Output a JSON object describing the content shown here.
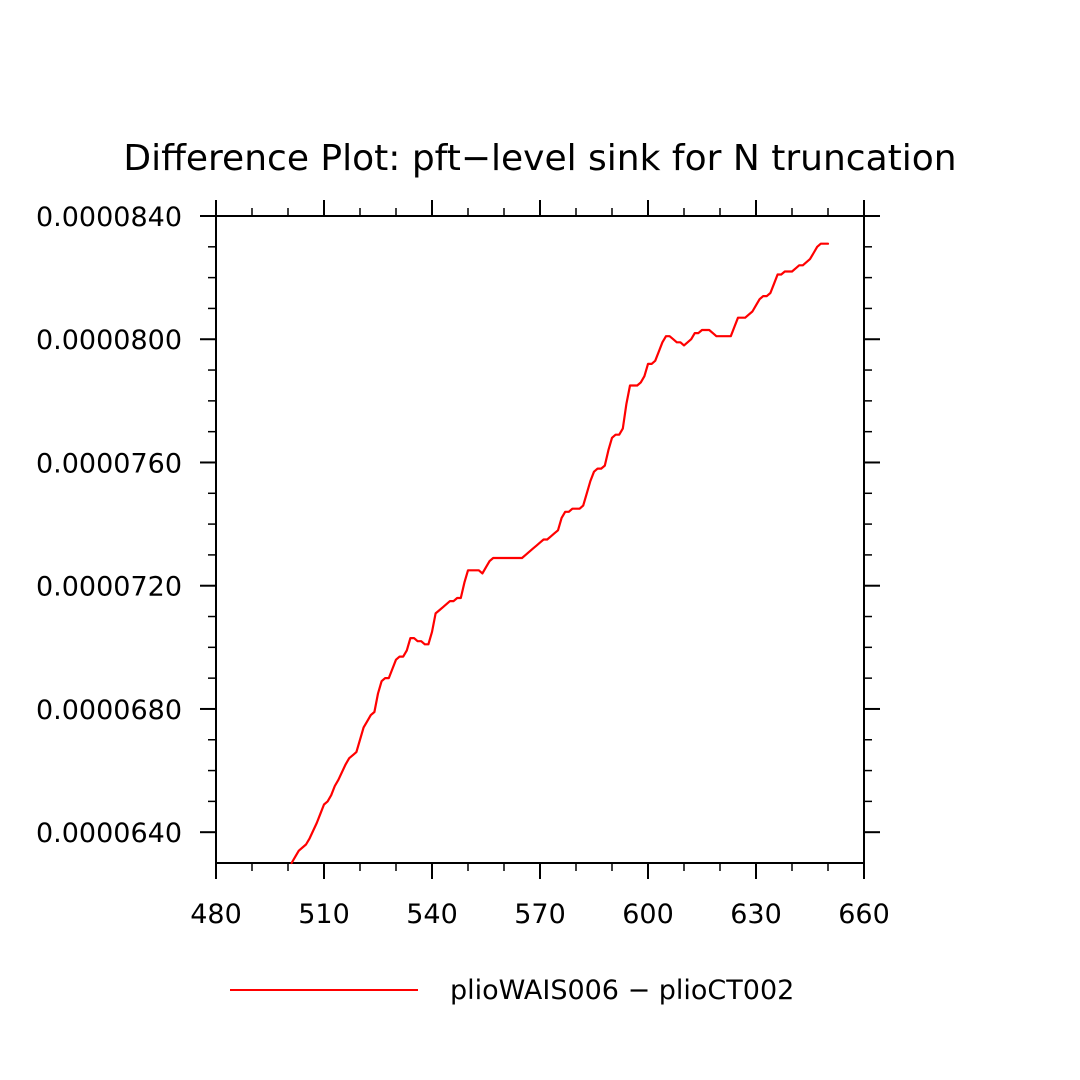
{
  "chart_data": {
    "type": "line",
    "title": "Difference Plot: pft−level sink for N truncation",
    "xlabel": "",
    "ylabel": "",
    "xlim": [
      480,
      660
    ],
    "ylim": [
      6.3e-05,
      8.4e-05
    ],
    "x_ticks": [
      480,
      510,
      540,
      570,
      600,
      630,
      660
    ],
    "x_tick_labels": [
      "480",
      "510",
      "540",
      "570",
      "600",
      "630",
      "660"
    ],
    "y_ticks": [
      6.4e-05,
      6.8e-05,
      7.2e-05,
      7.6e-05,
      8e-05,
      8.4e-05
    ],
    "y_tick_labels": [
      "0.0000640",
      "0.0000680",
      "0.0000720",
      "0.0000760",
      "0.0000800",
      "0.0000840"
    ],
    "grid": false,
    "legend_position": "bottom",
    "series": [
      {
        "name": "plioWAIS006 − plioCT002",
        "color": "#ff0000",
        "x": [
          501,
          502,
          503,
          505,
          506,
          508,
          509,
          510,
          511,
          512,
          513,
          514,
          516,
          517,
          518,
          519,
          521,
          522,
          523,
          524,
          525,
          526,
          527,
          528,
          529,
          530,
          531,
          532,
          533,
          534,
          535,
          536,
          537,
          538,
          539,
          540,
          541,
          542,
          543,
          544,
          545,
          546,
          547,
          548,
          549,
          550,
          551,
          552,
          553,
          554,
          555,
          556,
          557,
          558,
          559,
          560,
          561,
          562,
          563,
          564,
          565,
          566,
          567,
          568,
          569,
          570,
          571,
          572,
          573,
          574,
          575,
          576,
          577,
          578,
          579,
          580,
          581,
          582,
          583,
          584,
          585,
          586,
          587,
          588,
          589,
          590,
          591,
          592,
          593,
          594,
          595,
          596,
          597,
          598,
          599,
          600,
          601,
          602,
          603,
          604,
          605,
          606,
          607,
          608,
          609,
          610,
          611,
          612,
          613,
          614,
          615,
          616,
          617,
          618,
          619,
          620,
          621,
          622,
          623,
          624,
          625,
          626,
          627,
          628,
          629,
          630,
          631,
          632,
          633,
          634,
          635,
          636,
          637,
          638,
          639,
          640,
          641,
          642,
          643,
          644,
          645,
          646,
          647,
          648,
          649,
          650
        ],
        "y": [
          6.3e-05,
          6.32e-05,
          6.34e-05,
          6.36e-05,
          6.38e-05,
          6.43e-05,
          6.46e-05,
          6.49e-05,
          6.5e-05,
          6.52e-05,
          6.55e-05,
          6.57e-05,
          6.62e-05,
          6.64e-05,
          6.65e-05,
          6.66e-05,
          6.74e-05,
          6.76e-05,
          6.78e-05,
          6.79e-05,
          6.85e-05,
          6.89e-05,
          6.9e-05,
          6.9e-05,
          6.93e-05,
          6.96e-05,
          6.97e-05,
          6.97e-05,
          6.99e-05,
          7.03e-05,
          7.03e-05,
          7.02e-05,
          7.02e-05,
          7.01e-05,
          7.01e-05,
          7.05e-05,
          7.11e-05,
          7.12e-05,
          7.13e-05,
          7.14e-05,
          7.15e-05,
          7.15e-05,
          7.16e-05,
          7.16e-05,
          7.21e-05,
          7.25e-05,
          7.25e-05,
          7.25e-05,
          7.25e-05,
          7.24e-05,
          7.26e-05,
          7.28e-05,
          7.29e-05,
          7.29e-05,
          7.29e-05,
          7.29e-05,
          7.29e-05,
          7.29e-05,
          7.29e-05,
          7.29e-05,
          7.29e-05,
          7.3e-05,
          7.31e-05,
          7.32e-05,
          7.33e-05,
          7.34e-05,
          7.35e-05,
          7.35e-05,
          7.36e-05,
          7.37e-05,
          7.38e-05,
          7.42e-05,
          7.44e-05,
          7.44e-05,
          7.45e-05,
          7.45e-05,
          7.45e-05,
          7.46e-05,
          7.5e-05,
          7.54e-05,
          7.57e-05,
          7.58e-05,
          7.58e-05,
          7.59e-05,
          7.64e-05,
          7.68e-05,
          7.69e-05,
          7.69e-05,
          7.71e-05,
          7.79e-05,
          7.85e-05,
          7.85e-05,
          7.85e-05,
          7.86e-05,
          7.88e-05,
          7.92e-05,
          7.92e-05,
          7.93e-05,
          7.96e-05,
          7.99e-05,
          8.01e-05,
          8.01e-05,
          8e-05,
          7.99e-05,
          7.99e-05,
          7.98e-05,
          7.99e-05,
          8e-05,
          8.02e-05,
          8.02e-05,
          8.03e-05,
          8.03e-05,
          8.03e-05,
          8.02e-05,
          8.01e-05,
          8.01e-05,
          8.01e-05,
          8.01e-05,
          8.01e-05,
          8.04e-05,
          8.07e-05,
          8.07e-05,
          8.07e-05,
          8.08e-05,
          8.09e-05,
          8.11e-05,
          8.13e-05,
          8.14e-05,
          8.14e-05,
          8.15e-05,
          8.18e-05,
          8.21e-05,
          8.21e-05,
          8.22e-05,
          8.22e-05,
          8.22e-05,
          8.23e-05,
          8.24e-05,
          8.24e-05,
          8.25e-05,
          8.26e-05,
          8.28e-05,
          8.3e-05,
          8.31e-05,
          8.31e-05,
          8.31e-05
        ]
      }
    ]
  }
}
